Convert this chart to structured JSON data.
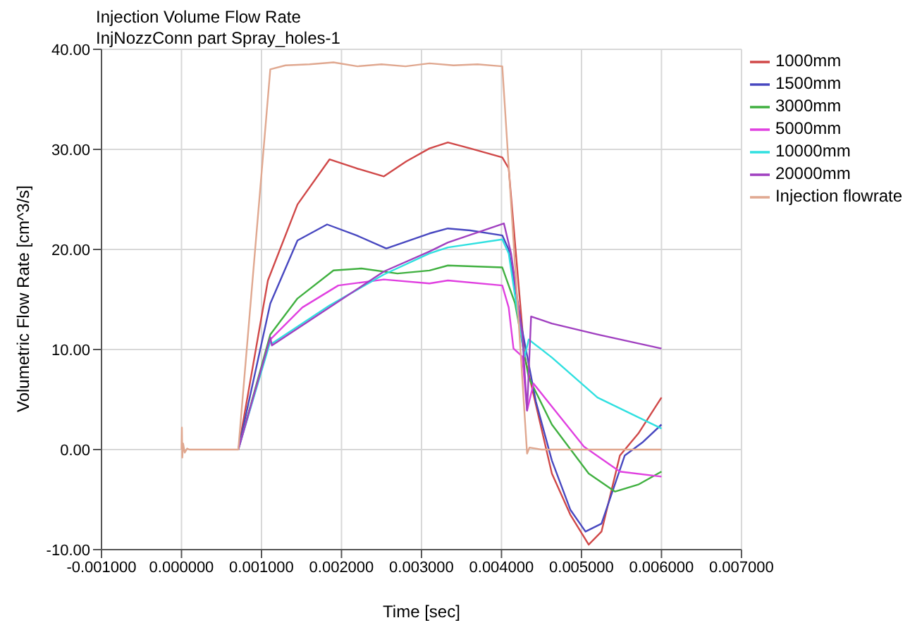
{
  "chart_data": {
    "type": "line",
    "title": "Injection Volume Flow Rate",
    "subtitle": "InjNozzConn part Spray_holes-1",
    "xlabel": "Time [sec]",
    "ylabel": "Volumetric Flow Rate [cm^3/s]",
    "xlim": [
      -0.001,
      0.007
    ],
    "ylim": [
      -10,
      40
    ],
    "xticks": [
      {
        "value": -0.001,
        "label": "-0.001000"
      },
      {
        "value": 0,
        "label": "0.000000"
      },
      {
        "value": 0.001,
        "label": "0.001000"
      },
      {
        "value": 0.002,
        "label": "0.002000"
      },
      {
        "value": 0.003,
        "label": "0.003000"
      },
      {
        "value": 0.004,
        "label": "0.004000"
      },
      {
        "value": 0.005,
        "label": "0.005000"
      },
      {
        "value": 0.006,
        "label": "0.006000"
      },
      {
        "value": 0.007,
        "label": "0.007000"
      }
    ],
    "yticks": [
      {
        "value": -10,
        "label": "-10.00"
      },
      {
        "value": 0,
        "label": "0.00"
      },
      {
        "value": 10,
        "label": "10.00"
      },
      {
        "value": 20,
        "label": "20.00"
      },
      {
        "value": 30,
        "label": "30.00"
      },
      {
        "value": 40,
        "label": "40.00"
      }
    ],
    "grid": true,
    "legend": "right",
    "marker": "none",
    "line_style": "solid",
    "series": [
      {
        "name": "1000mm",
        "color": "#d04848",
        "x": [
          0.00071,
          0.00108,
          0.00145,
          0.00185,
          0.00219,
          0.00253,
          0.00281,
          0.0031,
          0.00333,
          0.00361,
          0.00401,
          0.00409,
          0.00429,
          0.00463,
          0.00486,
          0.00509,
          0.00525,
          0.00548,
          0.00571,
          0.006
        ],
        "values": [
          0,
          16.9,
          24.5,
          29.0,
          28.1,
          27.3,
          28.8,
          30.1,
          30.7,
          30.1,
          29.2,
          28.1,
          9.3,
          -2.4,
          -6.5,
          -9.5,
          -8.2,
          -0.6,
          1.6,
          5.2
        ]
      },
      {
        "name": "1500mm",
        "color": "#4848c0",
        "x": [
          0.00071,
          0.00111,
          0.00145,
          0.00182,
          0.00219,
          0.00256,
          0.0031,
          0.00333,
          0.00361,
          0.00401,
          0.00409,
          0.00426,
          0.00443,
          0.00463,
          0.00486,
          0.00505,
          0.00525,
          0.00554,
          0.00576,
          0.006
        ],
        "values": [
          0,
          14.6,
          20.9,
          22.5,
          21.4,
          20.1,
          21.6,
          22.1,
          21.9,
          21.4,
          20.0,
          11.9,
          4.8,
          -1.1,
          -6.0,
          -8.2,
          -7.4,
          -0.6,
          0.7,
          2.5
        ]
      },
      {
        "name": "3000mm",
        "color": "#40b040",
        "x": [
          0.00071,
          0.00111,
          0.00145,
          0.0019,
          0.00225,
          0.0027,
          0.0031,
          0.00333,
          0.00401,
          0.00409,
          0.00417,
          0.00434,
          0.00463,
          0.00509,
          0.00542,
          0.00571,
          0.006
        ],
        "values": [
          0,
          11.5,
          15.1,
          17.9,
          18.1,
          17.6,
          17.9,
          18.4,
          18.2,
          16.4,
          14.6,
          7.2,
          2.5,
          -2.4,
          -4.2,
          -3.5,
          -2.2
        ]
      },
      {
        "name": "5000mm",
        "color": "#e040e0",
        "x": [
          0.00071,
          0.00111,
          0.00151,
          0.00196,
          0.00253,
          0.0031,
          0.00333,
          0.00401,
          0.00409,
          0.00415,
          0.00426,
          0.00432,
          0.0044,
          0.00463,
          0.00503,
          0.00548,
          0.006
        ],
        "values": [
          0,
          11.0,
          14.2,
          16.4,
          17.0,
          16.6,
          16.9,
          16.4,
          14.2,
          10.1,
          9.3,
          3.9,
          6.6,
          4.3,
          0.3,
          -2.2,
          -2.7
        ]
      },
      {
        "name": "10000mm",
        "color": "#30e0e0",
        "x": [
          0.00071,
          0.00111,
          0.00113,
          0.00185,
          0.00253,
          0.0031,
          0.00333,
          0.00401,
          0.00409,
          0.0042,
          0.00429,
          0.00434,
          0.00463,
          0.0052,
          0.006
        ],
        "values": [
          0,
          10.8,
          10.6,
          14.4,
          17.5,
          19.6,
          20.2,
          21.0,
          19.6,
          13.7,
          9.3,
          11.0,
          9.2,
          5.2,
          2.1
        ]
      },
      {
        "name": "20000mm",
        "color": "#a040c0",
        "x": [
          0.00071,
          0.00111,
          0.00113,
          0.00185,
          0.00253,
          0.0031,
          0.00333,
          0.00403,
          0.00412,
          0.00426,
          0.00432,
          0.00437,
          0.00463,
          0.0052,
          0.006
        ],
        "values": [
          0,
          11.2,
          10.4,
          14.2,
          17.8,
          19.8,
          20.7,
          22.6,
          19.6,
          11.5,
          3.9,
          13.3,
          12.6,
          11.5,
          10.1
        ]
      },
      {
        "name": "Injection flowrate",
        "color": "#e0a890",
        "x": [
          0,
          5e-06,
          1e-05,
          2e-05,
          4e-05,
          7e-05,
          0.0001,
          0.00071,
          0.00111,
          0.0013,
          0.0016,
          0.0019,
          0.0022,
          0.0025,
          0.0028,
          0.0031,
          0.0034,
          0.0037,
          0.00401,
          0.00432,
          0.00435,
          0.0045,
          0.006
        ],
        "values": [
          0,
          2.2,
          -0.8,
          0.6,
          -0.3,
          0.1,
          0,
          0,
          38.0,
          38.4,
          38.5,
          38.7,
          38.3,
          38.5,
          38.3,
          38.6,
          38.4,
          38.5,
          38.3,
          -0.4,
          0.2,
          0,
          0
        ]
      }
    ]
  }
}
